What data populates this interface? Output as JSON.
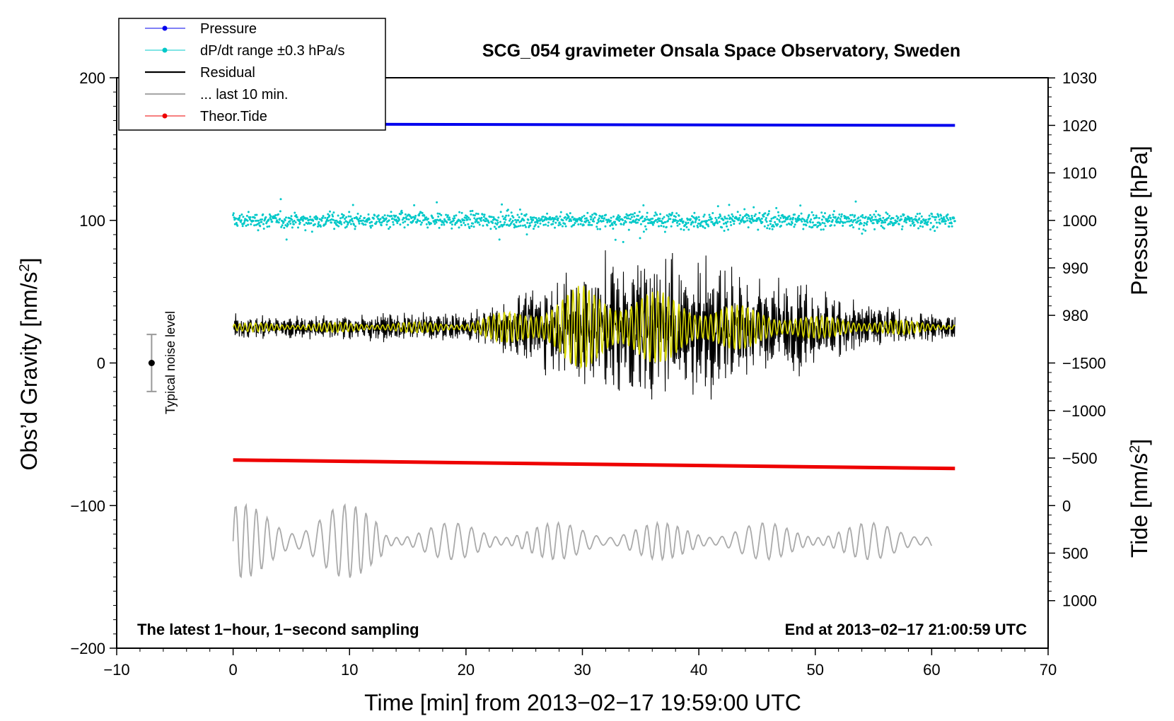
{
  "chart_data": {
    "type": "line",
    "title": "SCG_054 gravimeter Onsala Space Observatory, Sweden",
    "xlabel": "Time [min] from 2013−02−17 19:59:00 UTC",
    "ylabel_left": "Obs’d Gravity [nm/s²]",
    "ylabel_right_pressure": "Pressure [hPa]",
    "ylabel_right_tide": "Tide [nm/s²]",
    "xlim": [
      -10,
      70
    ],
    "ylim_left": [
      -200,
      200
    ],
    "x_ticks": [
      "−10",
      "0",
      "10",
      "20",
      "30",
      "40",
      "50",
      "60",
      "70"
    ],
    "y_ticks_left": [
      "200",
      "100",
      "0",
      "−100",
      "−200"
    ],
    "pressure_ticks": [
      "1030",
      "1020",
      "1010",
      "1000",
      "990",
      "980"
    ],
    "tide_ticks": [
      "1000",
      "500",
      "0",
      "−500",
      "−1000",
      "−1500"
    ],
    "legend": [
      {
        "label": "Pressure",
        "color": "#0000ee",
        "marker": true
      },
      {
        "label": "dP/dt range ±0.3 hPa/s",
        "color": "#00c8c8",
        "marker": true
      },
      {
        "label": "Residual",
        "color": "#000000",
        "marker": false
      },
      {
        "label": "... last 10 min.",
        "color": "#aaaaaa",
        "marker": false
      },
      {
        "label": "Theor.Tide",
        "color": "#ee0000",
        "marker": true
      }
    ],
    "annotations": {
      "bottom_left": "The latest 1−hour, 1−second sampling",
      "bottom_right": "End at 2013−02−17 21:00:59 UTC",
      "noise_label": "Typical noise level"
    },
    "series": [
      {
        "name": "Pressure",
        "axis": "pressure_hPa",
        "x_range": [
          0,
          62
        ],
        "start": 1020.3,
        "end": 1020.0
      },
      {
        "name": "dP/dt range",
        "axis": "gravity_offset",
        "x_range": [
          0,
          62
        ],
        "center": 100,
        "spread": 7
      },
      {
        "name": "Residual",
        "axis": "gravity",
        "x_range": [
          0,
          62
        ],
        "baseline": 25,
        "amplitude_envelope": [
          [
            0,
            9
          ],
          [
            10,
            10
          ],
          [
            20,
            12
          ],
          [
            25,
            25
          ],
          [
            30,
            45
          ],
          [
            35,
            60
          ],
          [
            39,
            60
          ],
          [
            45,
            40
          ],
          [
            55,
            18
          ],
          [
            62,
            10
          ]
        ]
      },
      {
        "name": "Residual filtered",
        "color": "#d4d400",
        "axis": "gravity",
        "x_range": [
          0,
          62
        ],
        "baseline": 25,
        "amplitude_envelope": [
          [
            0,
            3
          ],
          [
            20,
            4
          ],
          [
            25,
            15
          ],
          [
            30,
            30
          ],
          [
            35,
            28
          ],
          [
            40,
            20
          ],
          [
            50,
            8
          ],
          [
            62,
            3
          ]
        ]
      },
      {
        "name": "... last 10 min.",
        "axis": "gravity_offset",
        "x_range": [
          0,
          60
        ],
        "center": -125,
        "amplitude": 20
      },
      {
        "name": "Theor.Tide",
        "axis": "tide",
        "x_range": [
          0,
          62
        ],
        "start": -480,
        "end": -390
      }
    ],
    "noise_level": {
      "x": -7,
      "center": 0,
      "low": -20,
      "high": 20
    },
    "colors": {
      "pressure": "#0000ee",
      "dpdt": "#00c8c8",
      "residual": "#000000",
      "filtered": "#d4d400",
      "last10": "#aaaaaa",
      "tide": "#ee0000",
      "noise_bar": "#999999"
    }
  }
}
